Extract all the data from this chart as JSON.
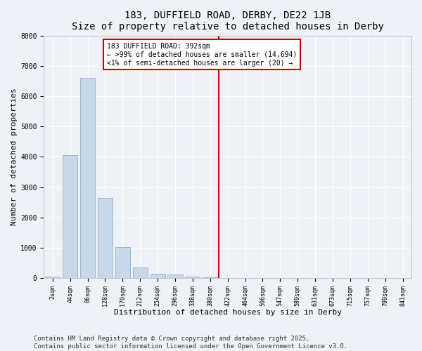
{
  "title1": "183, DUFFIELD ROAD, DERBY, DE22 1JB",
  "title2": "Size of property relative to detached houses in Derby",
  "xlabel": "Distribution of detached houses by size in Derby",
  "ylabel": "Number of detached properties",
  "categories": [
    "2sqm",
    "44sqm",
    "86sqm",
    "128sqm",
    "170sqm",
    "212sqm",
    "254sqm",
    "296sqm",
    "338sqm",
    "380sqm",
    "422sqm",
    "464sqm",
    "506sqm",
    "547sqm",
    "589sqm",
    "631sqm",
    "673sqm",
    "715sqm",
    "757sqm",
    "799sqm",
    "841sqm"
  ],
  "values": [
    60,
    4050,
    6600,
    2650,
    1010,
    340,
    140,
    110,
    60,
    30,
    0,
    0,
    0,
    0,
    0,
    0,
    0,
    0,
    0,
    0,
    0
  ],
  "bar_color": "#c8d8e8",
  "bar_edge_color": "#7aaac8",
  "ylim": [
    0,
    8000
  ],
  "yticks": [
    0,
    1000,
    2000,
    3000,
    4000,
    5000,
    6000,
    7000,
    8000
  ],
  "vline_x_index": 9.5,
  "vline_color": "#cc0000",
  "annotation_text": "183 DUFFIELD ROAD: 392sqm\n← >99% of detached houses are smaller (14,694)\n<1% of semi-detached houses are larger (20) →",
  "annotation_box_color": "#cc0000",
  "bg_color": "#eef2f7",
  "footer": "Contains HM Land Registry data © Crown copyright and database right 2025.\nContains public sector information licensed under the Open Government Licence v3.0.",
  "title_fontsize": 10,
  "label_fontsize": 8,
  "tick_fontsize": 7,
  "footer_fontsize": 6.5
}
